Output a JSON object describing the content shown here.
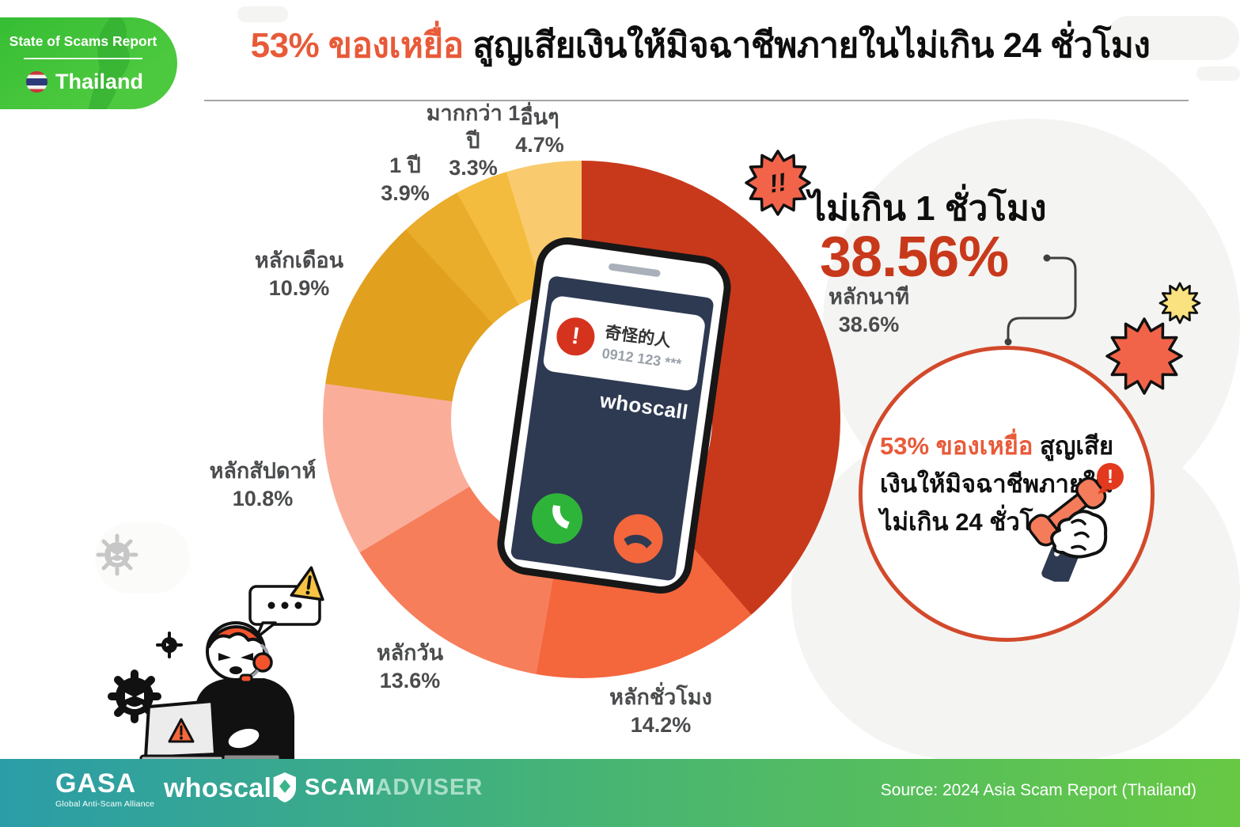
{
  "badge": {
    "report_label": "State of Scams Report",
    "country": "Thailand"
  },
  "title": {
    "highlight": "53% ของเหยื่อ",
    "rest": " สูญเสียเงินให้มิจฉาชีพภายในไม่เกิน 24 ชั่วโมง"
  },
  "chart_data": {
    "type": "pie",
    "donut": true,
    "title": "53% ของเหยื่อ สูญเสียเงินให้มิจฉาชีพภายในไม่เกิน 24 ชั่วโมง",
    "unit": "%",
    "start_angle_deg": 0,
    "direction": "clockwise",
    "segments": [
      {
        "label": "หลักนาที",
        "value": 38.6,
        "pct_label": "38.6%",
        "color": "#c8391b"
      },
      {
        "label": "หลักชั่วโมง",
        "value": 14.2,
        "pct_label": "14.2%",
        "color": "#f4663c"
      },
      {
        "label": "หลักวัน",
        "value": 13.6,
        "pct_label": "13.6%",
        "color": "#f77e5b"
      },
      {
        "label": "หลักสัปดาห์",
        "value": 10.8,
        "pct_label": "10.8%",
        "color": "#faae9a"
      },
      {
        "label": "หลักเดือน",
        "value": 10.9,
        "pct_label": "10.9%",
        "color": "#e2a01f"
      },
      {
        "label": "1 ปี",
        "value": 3.9,
        "pct_label": "3.9%",
        "color": "#eaac2b"
      },
      {
        "label": "มากกว่า 1 ปี",
        "value": 3.3,
        "pct_label": "3.3%",
        "color": "#f4bc3f"
      },
      {
        "label": "อื่นๆ",
        "value": 4.7,
        "pct_label": "4.7%",
        "color": "#f9cb6e"
      }
    ]
  },
  "hero": {
    "burst_text": "!!",
    "label": "ไม่เกิน 1 ชั่วโมง",
    "value": "38.56%"
  },
  "callout": {
    "highlight": "53% ของเหยื่อ",
    "line1_rest": " สูญเสีย",
    "line2": "เงินให้มิจฉาชีพภายใน",
    "line3": "ไม่เกิน 24 ชั่วโมง"
  },
  "phone": {
    "caller_name": "奇怪的人",
    "caller_number": "0912 123 ***",
    "alert_glyph": "!",
    "brand": "whoscall"
  },
  "footer": {
    "gasa": "GASA",
    "gasa_sub": "Global Anti-Scam Alliance",
    "whoscall": "whoscall",
    "scamadviser_scam": "SCAM",
    "scamadviser_adviser": "ADVISER",
    "source": "Source: 2024 Asia Scam Report (Thailand)"
  },
  "colors": {
    "accent_red": "#c8391b",
    "highlight_orange": "#e85a38",
    "label_grey": "#4a4b4d",
    "badge_green": "#3fc23c",
    "footer_teal": "#2b9da8",
    "footer_green": "#67c943",
    "screen_navy": "#2e3a52"
  }
}
